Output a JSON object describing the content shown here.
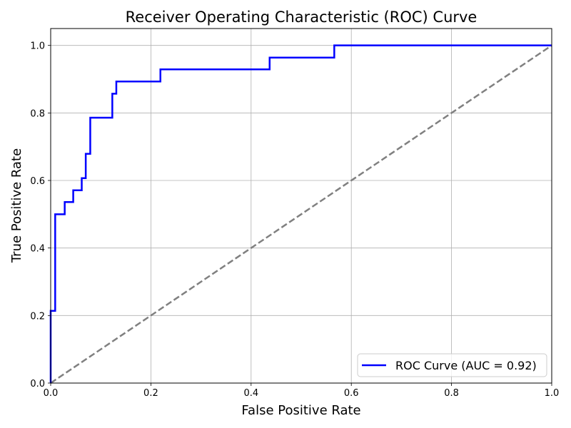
{
  "chart_data": {
    "type": "line",
    "title": "Receiver Operating Characteristic (ROC) Curve",
    "xlabel": "False Positive Rate",
    "ylabel": "True Positive Rate",
    "xlim": [
      0.0,
      1.0
    ],
    "ylim": [
      0.0,
      1.05
    ],
    "x_ticks": [
      "0.0",
      "0.2",
      "0.4",
      "0.6",
      "0.8",
      "1.0"
    ],
    "y_ticks": [
      "0.0",
      "0.2",
      "0.4",
      "0.6",
      "0.8",
      "1.0"
    ],
    "grid": true,
    "legend_position": "lower-right",
    "series": [
      {
        "name": "ROC Curve (AUC = 0.92)",
        "color": "#0000ff",
        "style": "solid",
        "x": [
          0.0,
          0.0,
          0.009,
          0.009,
          0.028,
          0.028,
          0.045,
          0.045,
          0.062,
          0.062,
          0.07,
          0.07,
          0.079,
          0.079,
          0.123,
          0.123,
          0.131,
          0.131,
          0.219,
          0.219,
          0.437,
          0.437,
          0.566,
          0.566,
          1.0
        ],
        "y": [
          0.0,
          0.214,
          0.214,
          0.5,
          0.5,
          0.536,
          0.536,
          0.571,
          0.571,
          0.607,
          0.607,
          0.679,
          0.679,
          0.786,
          0.786,
          0.857,
          0.857,
          0.893,
          0.893,
          0.929,
          0.929,
          0.964,
          0.964,
          1.0,
          1.0
        ]
      },
      {
        "color": "#808080",
        "style": "dashed",
        "x": [
          0.0,
          1.0
        ],
        "y": [
          0.0,
          1.0
        ]
      }
    ]
  }
}
